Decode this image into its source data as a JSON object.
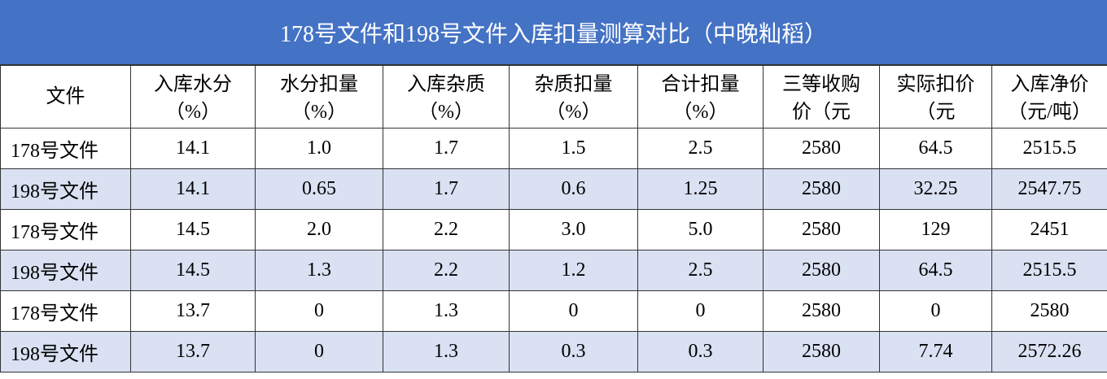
{
  "title": "178号文件和198号文件入库扣量测算对比（中晚籼稻）",
  "table": {
    "header": [
      "文件",
      "入库水分\n（%）",
      "水分扣量\n（%）",
      "入库杂质\n（%）",
      "杂质扣量\n（%）",
      "合计扣量\n（%）",
      "三等收购\n价（元",
      "实际扣价\n（元",
      "入库净价\n（元/吨）"
    ],
    "rows": [
      [
        "178号文件",
        "14.1",
        "1.0",
        "1.7",
        "1.5",
        "2.5",
        "2580",
        "64.5",
        "2515.5"
      ],
      [
        "198号文件",
        "14.1",
        "0.65",
        "1.7",
        "0.6",
        "1.25",
        "2580",
        "32.25",
        "2547.75"
      ],
      [
        "178号文件",
        "14.5",
        "2.0",
        "2.2",
        "3.0",
        "5.0",
        "2580",
        "129",
        "2451"
      ],
      [
        "198号文件",
        "14.5",
        "1.3",
        "2.2",
        "1.2",
        "2.5",
        "2580",
        "64.5",
        "2515.5"
      ],
      [
        "178号文件",
        "13.7",
        "0",
        "1.3",
        "0",
        "0",
        "2580",
        "0",
        "2580"
      ],
      [
        "198号文件",
        "13.7",
        "0",
        "1.3",
        "0.3",
        "0.3",
        "2580",
        "7.74",
        "2572.26"
      ]
    ]
  }
}
